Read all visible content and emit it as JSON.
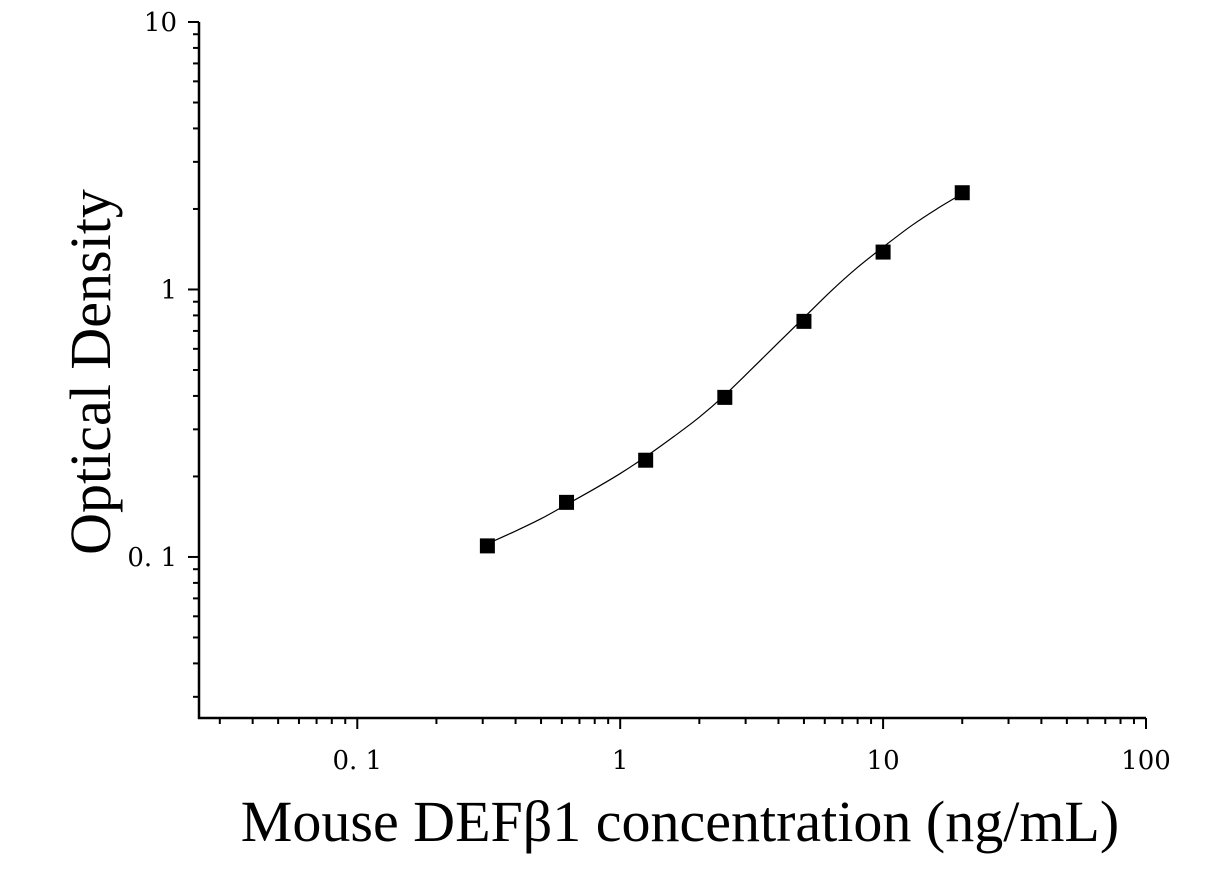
{
  "chart_data": {
    "type": "scatter",
    "title": "",
    "xlabel": "Mouse DEFβ1 concentration (ng/mL)",
    "ylabel": "Optical Density",
    "xscale": "log",
    "yscale": "log",
    "xlim": [
      0.025,
      100
    ],
    "ylim": [
      0.025,
      10
    ],
    "xticks": [
      {
        "value": 0.1,
        "label": "0. 1"
      },
      {
        "value": 1,
        "label": "1"
      },
      {
        "value": 10,
        "label": "10"
      },
      {
        "value": 100,
        "label": "100"
      }
    ],
    "yticks": [
      {
        "value": 0.1,
        "label": "0. 1"
      },
      {
        "value": 1,
        "label": "1"
      },
      {
        "value": 10,
        "label": "10"
      }
    ],
    "grid": false,
    "legend": "none",
    "series": [
      {
        "marker": "square",
        "color": "#000000",
        "x": [
          0.3125,
          0.625,
          1.25,
          2.5,
          5,
          10,
          20
        ],
        "y": [
          0.11,
          0.16,
          0.23,
          0.395,
          0.76,
          1.38,
          2.3
        ]
      }
    ],
    "fit_curve": {
      "type": "line",
      "color": "#000000",
      "x": [
        0.3125,
        0.4,
        0.5,
        0.625,
        0.8,
        1.0,
        1.25,
        1.6,
        2.0,
        2.5,
        3.2,
        4.0,
        5.0,
        6.4,
        8.0,
        10,
        12.8,
        16,
        20
      ],
      "y": [
        0.112,
        0.125,
        0.139,
        0.157,
        0.18,
        0.205,
        0.237,
        0.282,
        0.333,
        0.403,
        0.51,
        0.633,
        0.785,
        0.995,
        1.21,
        1.44,
        1.73,
        2.0,
        2.28
      ]
    }
  }
}
